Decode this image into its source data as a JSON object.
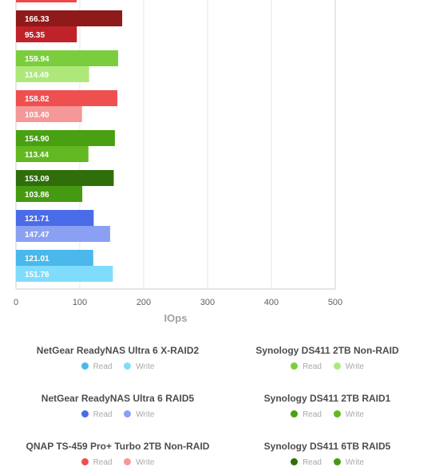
{
  "chart_data": {
    "type": "bar",
    "orientation": "horizontal",
    "xlabel": "IOps",
    "xlim": [
      0,
      500
    ],
    "xticks": [
      "0",
      "100",
      "200",
      "300",
      "400",
      "500"
    ],
    "grid": true,
    "legend_placement": "bottom",
    "bars": [
      {
        "value": 95,
        "label": "",
        "color": "#f04848"
      },
      {
        "value": 166.33,
        "label": "166.33",
        "color": "#8e1a1a"
      },
      {
        "value": 95.35,
        "label": "95.35",
        "color": "#c0222a"
      },
      {
        "value": 159.94,
        "label": "159.94",
        "color": "#7ccd3e"
      },
      {
        "value": 114.49,
        "label": "114.49",
        "color": "#aee87a"
      },
      {
        "value": 158.82,
        "label": "158.82",
        "color": "#ee5050"
      },
      {
        "value": 103.4,
        "label": "103.40",
        "color": "#f49898"
      },
      {
        "value": 154.9,
        "label": "154.90",
        "color": "#48a012"
      },
      {
        "value": 113.44,
        "label": "113.44",
        "color": "#62b820"
      },
      {
        "value": 153.09,
        "label": "153.09",
        "color": "#2f6e0a"
      },
      {
        "value": 103.86,
        "label": "103.86",
        "color": "#469a12"
      },
      {
        "value": 121.71,
        "label": "121.71",
        "color": "#4a6ce8"
      },
      {
        "value": 147.47,
        "label": "147.47",
        "color": "#8aa0f2"
      },
      {
        "value": 121.01,
        "label": "121.01",
        "color": "#4ab8ea"
      },
      {
        "value": 151.76,
        "label": "151.76",
        "color": "#80dcfc"
      }
    ]
  },
  "legend": [
    {
      "title": "NetGear ReadyNAS Ultra 6 X-RAID2",
      "read_label": "Read",
      "write_label": "Write",
      "read_color": "#4ab8ea",
      "write_color": "#80dcfc"
    },
    {
      "title": "Synology DS411 2TB Non-RAID",
      "read_label": "Read",
      "write_label": "Write",
      "read_color": "#7ccd3e",
      "write_color": "#aee87a"
    },
    {
      "title": "NetGear ReadyNAS Ultra 6 RAID5",
      "read_label": "Read",
      "write_label": "Write",
      "read_color": "#4a6ce8",
      "write_color": "#8aa0f2"
    },
    {
      "title": "Synology DS411 2TB RAID1",
      "read_label": "Read",
      "write_label": "Write",
      "read_color": "#48a012",
      "write_color": "#62b820"
    },
    {
      "title": "QNAP TS-459 Pro+ Turbo 2TB Non-RAID",
      "read_label": "Read",
      "write_label": "Write",
      "read_color": "#ee5050",
      "write_color": "#f49898"
    },
    {
      "title": "Synology DS411 6TB RAID5",
      "read_label": "Read",
      "write_label": "Write",
      "read_color": "#2f6e0a",
      "write_color": "#469a12"
    }
  ]
}
